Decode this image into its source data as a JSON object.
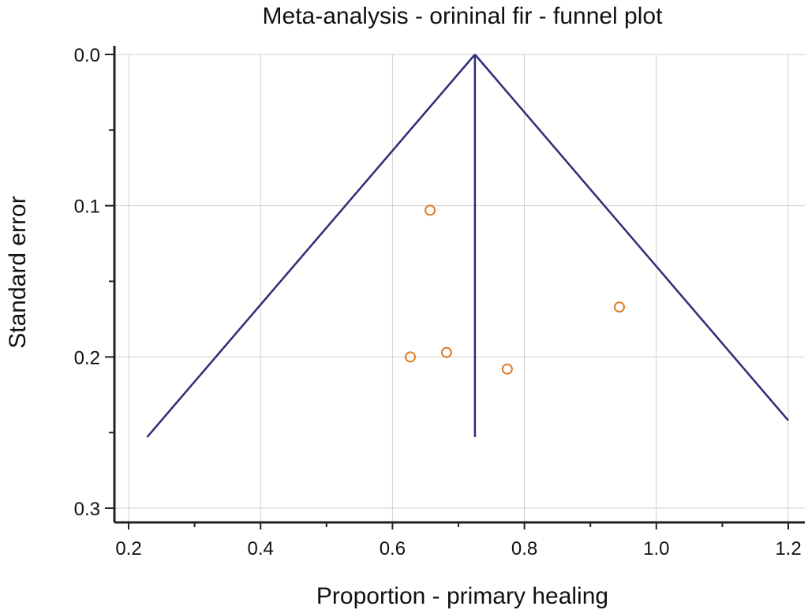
{
  "chart_data": {
    "type": "scatter",
    "title": "Meta-analysis - orininal fir - funnel plot",
    "xlabel": "Proportion - primary healing",
    "ylabel": "Standard error",
    "xlim": [
      0.2,
      1.2
    ],
    "ylim": [
      0.0,
      0.3
    ],
    "y_inverted": true,
    "grid": true,
    "x_ticks": [
      "0.2",
      "0.4",
      "0.6",
      "0.8",
      "1.0",
      "1.2"
    ],
    "y_ticks": [
      "0.0",
      "0.1",
      "0.2",
      "0.3"
    ],
    "pooled_estimate": 0.725,
    "funnel": {
      "apex": [
        0.725,
        0.0
      ],
      "left_end": [
        0.228,
        0.253
      ],
      "right_end": [
        1.2,
        0.242
      ],
      "center_line_bottom_se": 0.253
    },
    "points": [
      {
        "x": 0.657,
        "y": 0.103
      },
      {
        "x": 0.944,
        "y": 0.167
      },
      {
        "x": 0.682,
        "y": 0.197
      },
      {
        "x": 0.627,
        "y": 0.2
      },
      {
        "x": 0.774,
        "y": 0.208
      }
    ],
    "colors": {
      "funnel": "#2e2b7a",
      "points": "#e07a1f",
      "grid": "#d0d0d0",
      "axis": "#222222"
    }
  }
}
